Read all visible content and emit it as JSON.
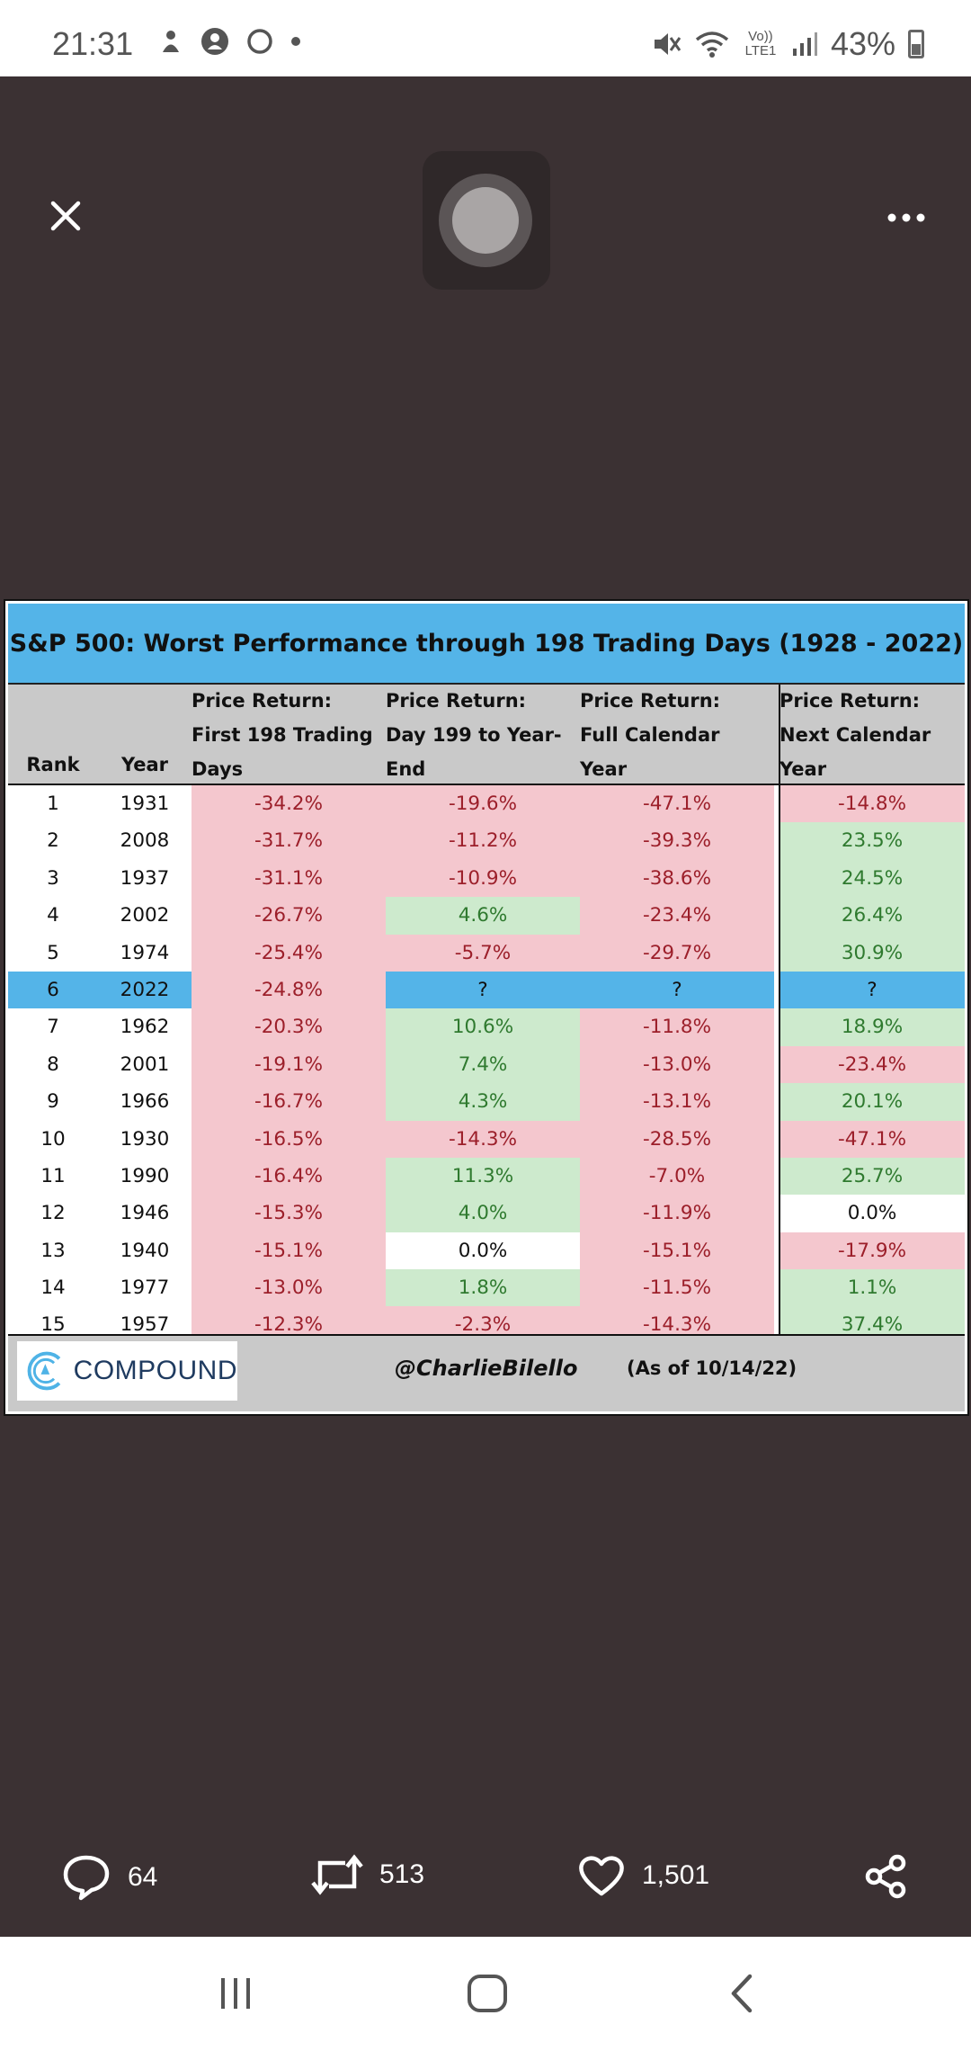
{
  "status_bar": {
    "time": "21:31",
    "battery": "43%",
    "network": "Vo)) LTE1"
  },
  "viewer": {
    "close_icon": "close-icon",
    "more_icon": "more-icon"
  },
  "table": {
    "title": "S&P 500: Worst Performance through 198 Trading Days (1928 - 2022)",
    "headers": {
      "rank": "Rank",
      "year": "Year",
      "col1_l1": "Price Return:",
      "col1_l2": "First 198 Trading",
      "col1_l3": "Days",
      "col2_l1": "Price Return:",
      "col2_l2": "Day 199 to Year-",
      "col2_l3": "End",
      "col3_l1": "Price Return:",
      "col3_l2": "Full Calendar",
      "col3_l3": "Year",
      "col4_l1": "Price Return:",
      "col4_l2": "Next Calendar",
      "col4_l3": "Year"
    },
    "rows": [
      {
        "rank": "1",
        "year": "1931",
        "first198": "-34.2%",
        "day199": "-19.6%",
        "full": "-47.1%",
        "next": "-14.8%"
      },
      {
        "rank": "2",
        "year": "2008",
        "first198": "-31.7%",
        "day199": "-11.2%",
        "full": "-39.3%",
        "next": "23.5%"
      },
      {
        "rank": "3",
        "year": "1937",
        "first198": "-31.1%",
        "day199": "-10.9%",
        "full": "-38.6%",
        "next": "24.5%"
      },
      {
        "rank": "4",
        "year": "2002",
        "first198": "-26.7%",
        "day199": "4.6%",
        "full": "-23.4%",
        "next": "26.4%"
      },
      {
        "rank": "5",
        "year": "1974",
        "first198": "-25.4%",
        "day199": "-5.7%",
        "full": "-29.7%",
        "next": "30.9%"
      },
      {
        "rank": "6",
        "year": "2022",
        "first198": "-24.8%",
        "day199": "?",
        "full": "?",
        "next": "?"
      },
      {
        "rank": "7",
        "year": "1962",
        "first198": "-20.3%",
        "day199": "10.6%",
        "full": "-11.8%",
        "next": "18.9%"
      },
      {
        "rank": "8",
        "year": "2001",
        "first198": "-19.1%",
        "day199": "7.4%",
        "full": "-13.0%",
        "next": "-23.4%"
      },
      {
        "rank": "9",
        "year": "1966",
        "first198": "-16.7%",
        "day199": "4.3%",
        "full": "-13.1%",
        "next": "20.1%"
      },
      {
        "rank": "10",
        "year": "1930",
        "first198": "-16.5%",
        "day199": "-14.3%",
        "full": "-28.5%",
        "next": "-47.1%"
      },
      {
        "rank": "11",
        "year": "1990",
        "first198": "-16.4%",
        "day199": "11.3%",
        "full": "-7.0%",
        "next": "25.7%"
      },
      {
        "rank": "12",
        "year": "1946",
        "first198": "-15.3%",
        "day199": "4.0%",
        "full": "-11.9%",
        "next": "0.0%"
      },
      {
        "rank": "13",
        "year": "1940",
        "first198": "-15.1%",
        "day199": "0.0%",
        "full": "-15.1%",
        "next": "-17.9%"
      },
      {
        "rank": "14",
        "year": "1977",
        "first198": "-13.0%",
        "day199": "1.8%",
        "full": "-11.5%",
        "next": "1.1%"
      },
      {
        "rank": "15",
        "year": "1957",
        "first198": "-12.3%",
        "day199": "-2.3%",
        "full": "-14.3%",
        "next": "37.4%"
      }
    ],
    "footer": {
      "logo": "COMPOUND",
      "handle": "@CharlieBilello",
      "as_of": "(As of 10/14/22)"
    }
  },
  "actions": {
    "replies": "64",
    "retweets": "513",
    "likes": "1,501"
  },
  "colors": {
    "negative_bg": "#f4c7ce",
    "positive_bg": "#cdeacd",
    "highlight_bg": "#54b4e8",
    "viewer_bg": "#3b3133"
  }
}
